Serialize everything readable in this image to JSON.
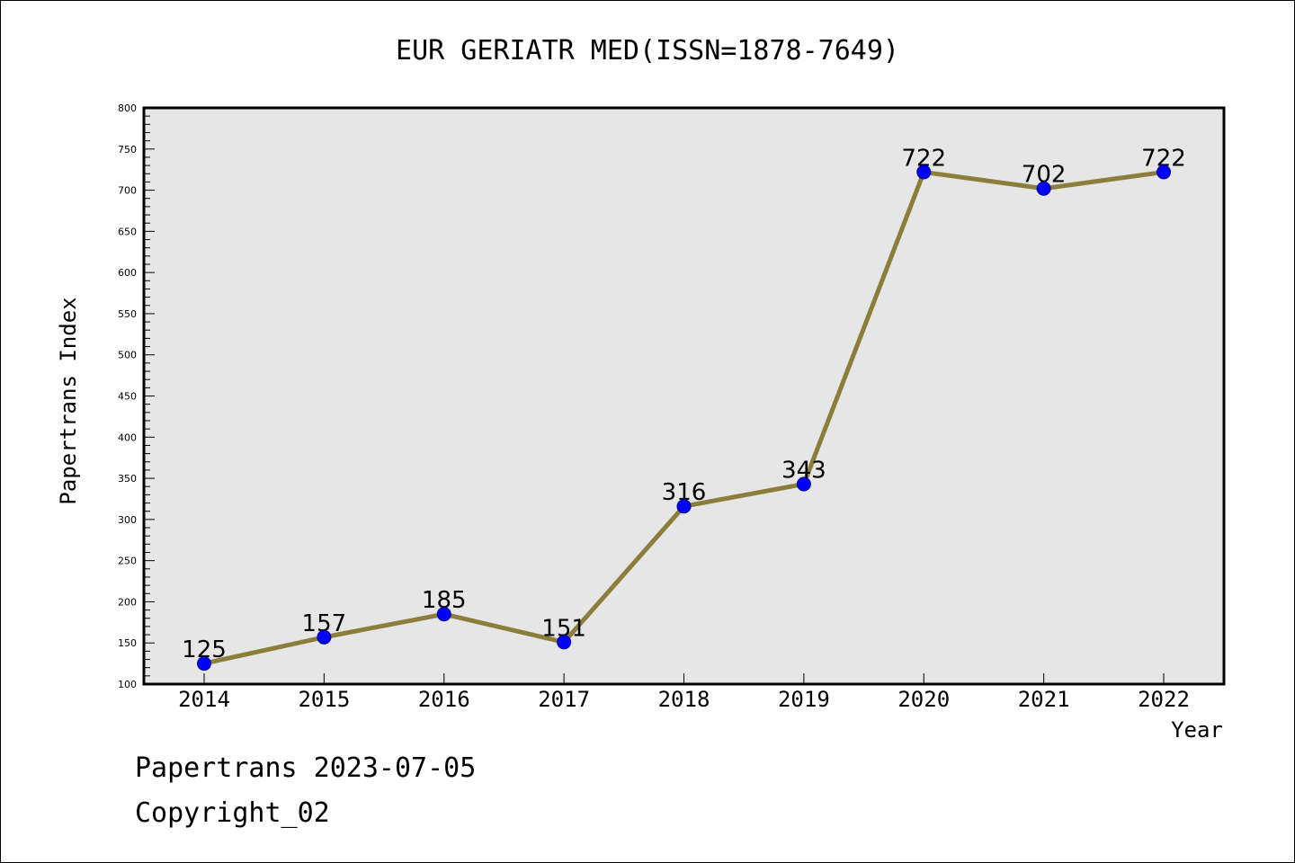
{
  "chart_data": {
    "type": "line",
    "title": "EUR GERIATR MED(ISSN=1878-7649)",
    "xlabel": "Year",
    "ylabel": "Papertrans Index",
    "categories": [
      "2014",
      "2015",
      "2016",
      "2017",
      "2018",
      "2019",
      "2020",
      "2021",
      "2022"
    ],
    "series": [
      {
        "values": [
          125,
          157,
          185,
          151,
          316,
          343,
          722,
          702,
          722
        ]
      }
    ],
    "data_labels": [
      "125",
      "157",
      "185",
      "151",
      "316",
      "343",
      "722",
      "702",
      "722"
    ],
    "ylim": [
      100,
      800
    ],
    "y_ticks": [
      "100",
      "150",
      "200",
      "250",
      "300",
      "350",
      "400",
      "450",
      "500",
      "550",
      "600",
      "650",
      "700",
      "750",
      "800"
    ],
    "grid": false,
    "legend": "none",
    "colors": {
      "line": "#8B7D3A",
      "marker": "#0000FF",
      "marker_edge": "#00008B",
      "plot_background": "#E6E6E6"
    }
  },
  "footer": {
    "line1": "Papertrans 2023-07-05",
    "line2": "Copyright_02"
  }
}
